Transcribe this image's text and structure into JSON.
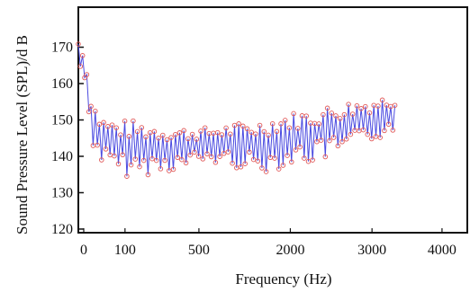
{
  "chart_data": {
    "type": "line",
    "title": "",
    "xlabel": "Frequency (Hz)",
    "ylabel": "Sound Pressure Level (SPL)/d B",
    "x_tick_labels": [
      "0",
      "100",
      "500",
      "2000",
      "3000",
      "4000"
    ],
    "y_ticks": [
      120,
      130,
      140,
      150,
      160,
      170
    ],
    "ylim": [
      119,
      181
    ],
    "xlim": [
      0,
      4300
    ],
    "grid": false,
    "legend": "none",
    "colors": {
      "line": "#4a4ae0",
      "marker": "#e05858",
      "axis": "#111111"
    },
    "series": [
      {
        "upper_envelope": {
          "x": [
            0,
            30,
            80,
            150,
            250,
            400,
            600,
            800,
            1100,
            1400,
            1700,
            2000,
            2300,
            2600,
            2900,
            3200,
            3500
          ],
          "y": [
            173,
            172,
            166,
            156,
            151,
            150,
            150,
            149,
            148,
            148,
            149,
            150,
            152,
            153,
            155,
            156,
            157
          ]
        },
        "lower_envelope": {
          "x": [
            0,
            30,
            80,
            150,
            250,
            400,
            600,
            800,
            1100,
            1400,
            1700,
            2000,
            2300,
            2600,
            2900,
            3200,
            3500
          ],
          "y": [
            160,
            164,
            158,
            143,
            138,
            135,
            134,
            135,
            136,
            138,
            137,
            135,
            137,
            138,
            140,
            143,
            147
          ]
        }
      }
    ]
  }
}
